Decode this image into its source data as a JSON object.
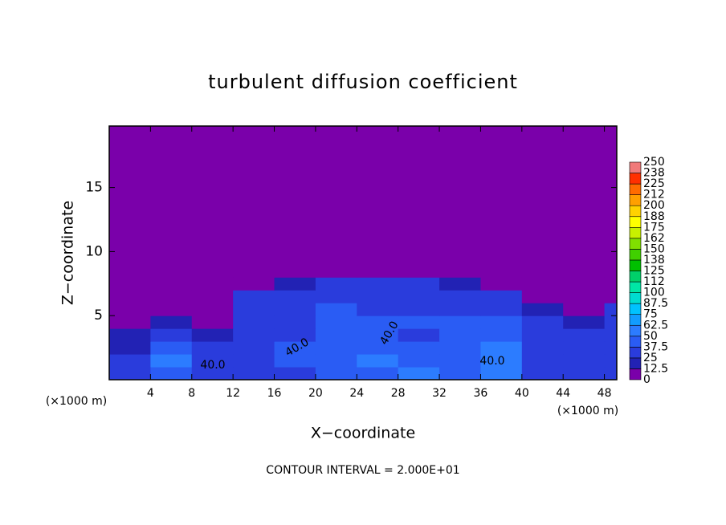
{
  "chart_data": {
    "type": "contour",
    "title": "turbulent diffusion coefficient",
    "x_label": "X−coordinate",
    "y_label": "Z−coordinate",
    "x_unit": "(×1000 m)",
    "y_unit": "(×1000 m)",
    "footer": "CONTOUR INTERVAL = 2.000E+01",
    "xlim": [
      0,
      49.2
    ],
    "ylim": [
      0,
      19.8
    ],
    "xticks": [
      4,
      8,
      12,
      16,
      20,
      24,
      28,
      32,
      36,
      40,
      44,
      48
    ],
    "yticks": [
      5,
      10,
      15
    ],
    "grid": false,
    "contour_labels": [
      {
        "value": 40,
        "label": "40.0"
      }
    ],
    "colorbar": {
      "levels": [
        0,
        12.5,
        25,
        37.5,
        50,
        62.5,
        75,
        87.5,
        100,
        112,
        125,
        138,
        150,
        162,
        175,
        188,
        200,
        212,
        225,
        238,
        250
      ],
      "colors": [
        "#7a00aa",
        "#2222b4",
        "#2a3cdc",
        "#2a5cf4",
        "#2c7cff",
        "#129cff",
        "#00c2ff",
        "#00dcd0",
        "#00e6a6",
        "#00d06a",
        "#00c000",
        "#40d000",
        "#80e000",
        "#c8f000",
        "#ffff00",
        "#ffd200",
        "#ffa000",
        "#ff6c00",
        "#ff3000",
        "#f07a7a"
      ]
    },
    "field": {
      "x_edges": [
        0,
        4,
        8,
        12,
        16,
        20,
        24,
        28,
        32,
        36,
        40,
        44,
        48,
        49.2
      ],
      "y_edges": [
        0,
        1,
        2,
        3,
        4,
        5,
        6,
        7,
        8,
        19.8
      ],
      "values": [
        [
          30,
          40,
          35,
          30,
          35,
          40,
          45,
          55,
          40,
          50,
          35,
          30,
          30
        ],
        [
          25,
          50,
          35,
          35,
          40,
          45,
          50,
          45,
          40,
          55,
          35,
          30,
          25
        ],
        [
          20,
          40,
          25,
          30,
          40,
          40,
          45,
          40,
          45,
          50,
          35,
          25,
          30
        ],
        [
          15,
          30,
          20,
          30,
          35,
          45,
          40,
          35,
          45,
          40,
          30,
          30,
          30
        ],
        [
          10,
          20,
          10,
          35,
          35,
          40,
          45,
          40,
          40,
          40,
          25,
          15,
          30
        ],
        [
          5,
          5,
          5,
          30,
          35,
          40,
          35,
          35,
          35,
          35,
          20,
          10,
          25
        ],
        [
          0,
          0,
          0,
          30,
          30,
          35,
          35,
          30,
          30,
          25,
          5,
          5,
          10
        ],
        [
          0,
          0,
          0,
          5,
          20,
          25,
          30,
          25,
          20,
          5,
          0,
          0,
          0
        ],
        [
          0,
          0,
          0,
          0,
          0,
          0,
          0,
          0,
          0,
          0,
          0,
          0,
          0
        ]
      ]
    }
  }
}
